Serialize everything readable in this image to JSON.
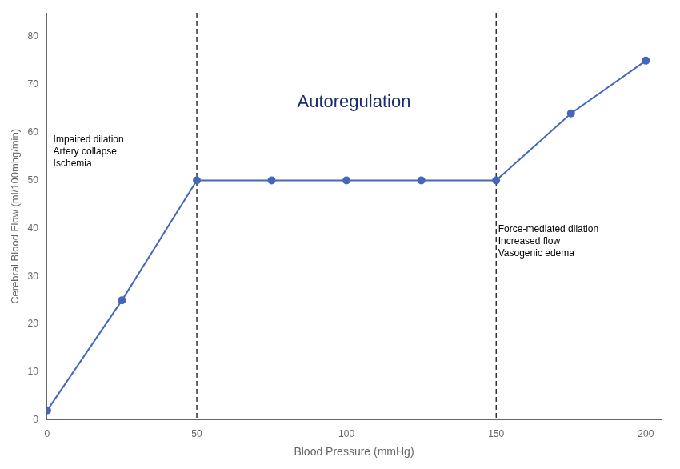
{
  "chart_data": {
    "type": "line",
    "xlabel": "Blood Pressure (mmHg)",
    "ylabel": "Cerebral Blood Flow (ml/100mhg/min)",
    "x": [
      0,
      25,
      50,
      75,
      100,
      125,
      150,
      175,
      200
    ],
    "series": [
      {
        "values": [
          2,
          25,
          50,
          50,
          50,
          50,
          50,
          64,
          75
        ],
        "color": "#4466bb",
        "marker": "circle"
      }
    ],
    "xlim": [
      0,
      205
    ],
    "ylim": [
      0,
      85
    ],
    "xticks": [
      0,
      50,
      100,
      150,
      200
    ],
    "yticks": [
      0,
      10,
      20,
      30,
      40,
      50,
      60,
      70,
      80
    ],
    "grid": false,
    "vlines": [
      50,
      150
    ],
    "annotations": [
      {
        "lines": [
          "Autoregulation"
        ],
        "color": "#1a2e6e"
      },
      {
        "lines": [
          "Impaired dilation",
          "Artery collapse",
          "Ischemia"
        ]
      },
      {
        "lines": [
          "Force-mediated dilation",
          "Increased flow",
          "Vasogenic edema"
        ]
      }
    ]
  }
}
